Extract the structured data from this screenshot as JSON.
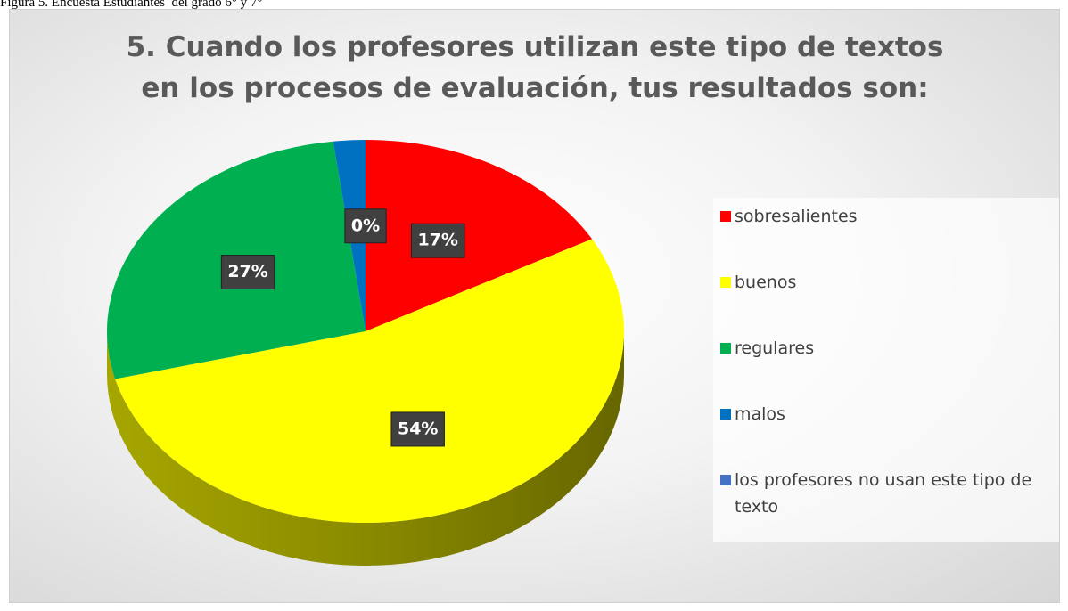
{
  "caption": "Figura 5. Encuesta Estudiantes  del grado 6° y 7°",
  "chart_data": {
    "type": "pie",
    "title": "5. Cuando los profesores utilizan este tipo de textos en los procesos de evaluación, tus resultados son:",
    "categories": [
      "sobresalientes",
      "buenos",
      "regulares",
      "malos",
      "los profesores no usan este tipo de texto"
    ],
    "values": [
      17,
      54,
      27,
      2,
      0
    ],
    "value_labels": [
      "17%",
      "54%",
      "27%",
      null,
      "0%"
    ],
    "colors": [
      "#ff0000",
      "#ffff00",
      "#00b050",
      "#0070c0",
      "#4472c4"
    ],
    "legend": "right"
  }
}
